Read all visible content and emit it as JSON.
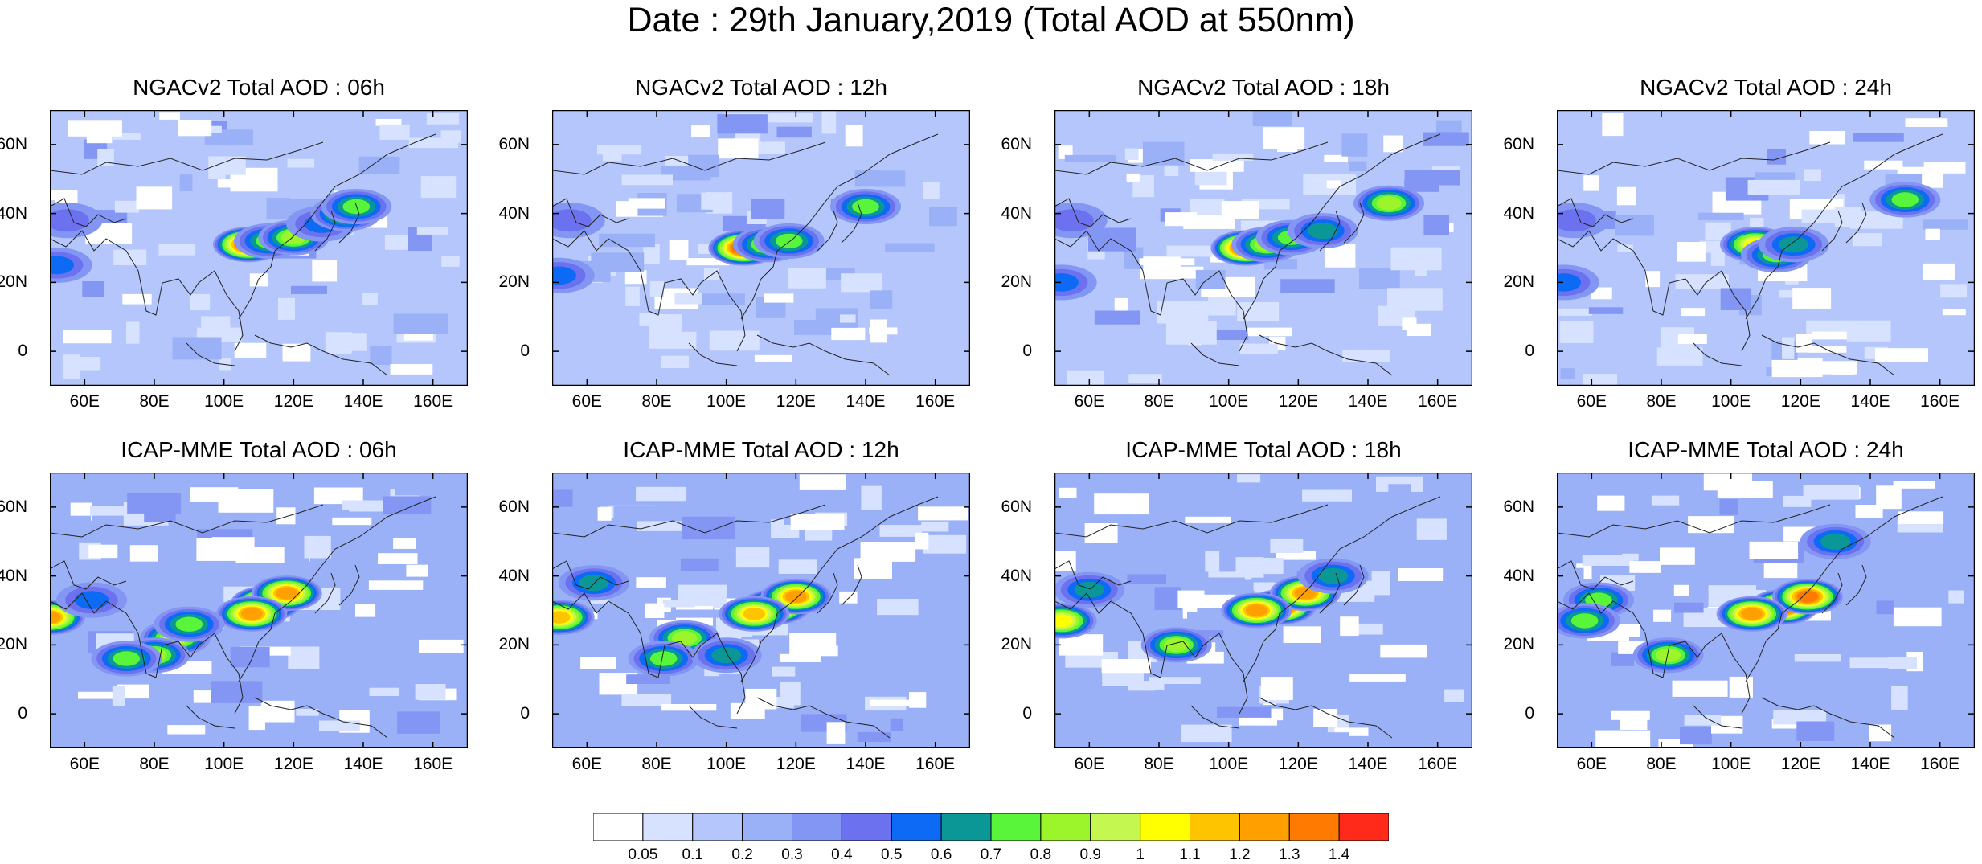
{
  "title": "Date : 29th January,2019 (Total AOD at 550nm)",
  "axis": {
    "lon_range": [
      50,
      170
    ],
    "lat_range": [
      -10,
      70
    ],
    "lon_ticks": [
      "60E",
      "80E",
      "100E",
      "120E",
      "140E",
      "160E"
    ],
    "lon_tick_values": [
      60,
      80,
      100,
      120,
      140,
      160
    ],
    "lat_ticks": [
      "60N",
      "40N",
      "20N",
      "0"
    ],
    "lat_tick_values": [
      60,
      40,
      20,
      0
    ]
  },
  "colorbar": {
    "levels": [
      "0.05",
      "0.1",
      "0.2",
      "0.3",
      "0.4",
      "0.5",
      "0.6",
      "0.7",
      "0.8",
      "0.9",
      "1",
      "1.1",
      "1.2",
      "1.3",
      "1.4"
    ],
    "colors": [
      "#ffffff",
      "#d6e2ff",
      "#b4c6fb",
      "#9ab0f7",
      "#8396f4",
      "#6c72ef",
      "#0d6af5",
      "#0b9796",
      "#58f53a",
      "#9cf52a",
      "#c4f74f",
      "#ffff00",
      "#ffc400",
      "#ffa000",
      "#ff7a00",
      "#ff2a1a"
    ]
  },
  "panels": [
    {
      "title": "NGACv2 Total AOD : 06h",
      "model": "NGACv2",
      "hour": "06h",
      "plumes": [
        {
          "lon": 107,
          "lat": 31,
          "level": 15
        },
        {
          "lon": 113,
          "lat": 32,
          "level": 8
        },
        {
          "lon": 120,
          "lat": 33,
          "level": 9
        },
        {
          "lon": 128,
          "lat": 37,
          "level": 6
        },
        {
          "lon": 135,
          "lat": 40,
          "level": 9
        },
        {
          "lon": 138,
          "lat": 42,
          "level": 8
        },
        {
          "lon": 55,
          "lat": 38,
          "level": 5
        },
        {
          "lon": 52,
          "lat": 25,
          "level": 6
        }
      ]
    },
    {
      "title": "NGACv2 Total AOD : 12h",
      "model": "NGACv2",
      "hour": "12h",
      "plumes": [
        {
          "lon": 105,
          "lat": 30,
          "level": 15
        },
        {
          "lon": 112,
          "lat": 31,
          "level": 9
        },
        {
          "lon": 118,
          "lat": 32,
          "level": 8
        },
        {
          "lon": 140,
          "lat": 42,
          "level": 8
        },
        {
          "lon": 55,
          "lat": 38,
          "level": 5
        },
        {
          "lon": 52,
          "lat": 22,
          "level": 6
        }
      ]
    },
    {
      "title": "NGACv2 Total AOD : 18h",
      "model": "NGACv2",
      "hour": "18h",
      "plumes": [
        {
          "lon": 105,
          "lat": 30,
          "level": 15
        },
        {
          "lon": 111,
          "lat": 31,
          "level": 9
        },
        {
          "lon": 118,
          "lat": 33,
          "level": 8
        },
        {
          "lon": 127,
          "lat": 35,
          "level": 7
        },
        {
          "lon": 146,
          "lat": 43,
          "level": 9
        },
        {
          "lon": 55,
          "lat": 38,
          "level": 5
        },
        {
          "lon": 52,
          "lat": 20,
          "level": 6
        }
      ]
    },
    {
      "title": "NGACv2 Total AOD : 24h",
      "model": "NGACv2",
      "hour": "24h",
      "plumes": [
        {
          "lon": 107,
          "lat": 31,
          "level": 11
        },
        {
          "lon": 113,
          "lat": 28,
          "level": 8
        },
        {
          "lon": 118,
          "lat": 31,
          "level": 7
        },
        {
          "lon": 150,
          "lat": 44,
          "level": 8
        },
        {
          "lon": 55,
          "lat": 38,
          "level": 5
        },
        {
          "lon": 52,
          "lat": 20,
          "level": 6
        }
      ]
    },
    {
      "title": "ICAP-MME Total AOD : 06h",
      "model": "ICAP-MME",
      "hour": "06h",
      "plumes": [
        {
          "lon": 112,
          "lat": 32,
          "level": 15
        },
        {
          "lon": 118,
          "lat": 35,
          "level": 13
        },
        {
          "lon": 108,
          "lat": 29,
          "level": 13
        },
        {
          "lon": 86,
          "lat": 22,
          "level": 10
        },
        {
          "lon": 80,
          "lat": 17,
          "level": 9
        },
        {
          "lon": 90,
          "lat": 26,
          "level": 8
        },
        {
          "lon": 50,
          "lat": 28,
          "level": 13
        },
        {
          "lon": 62,
          "lat": 33,
          "level": 6
        },
        {
          "lon": 72,
          "lat": 16,
          "level": 8
        }
      ]
    },
    {
      "title": "ICAP-MME Total AOD : 12h",
      "model": "ICAP-MME",
      "hour": "12h",
      "plumes": [
        {
          "lon": 114,
          "lat": 31,
          "level": 15
        },
        {
          "lon": 120,
          "lat": 34,
          "level": 13
        },
        {
          "lon": 108,
          "lat": 29,
          "level": 12
        },
        {
          "lon": 88,
          "lat": 22,
          "level": 9
        },
        {
          "lon": 82,
          "lat": 16,
          "level": 8
        },
        {
          "lon": 52,
          "lat": 28,
          "level": 12
        },
        {
          "lon": 62,
          "lat": 38,
          "level": 7
        },
        {
          "lon": 100,
          "lat": 17,
          "level": 7
        }
      ]
    },
    {
      "title": "ICAP-MME Total AOD : 18h",
      "model": "ICAP-MME",
      "hour": "18h",
      "plumes": [
        {
          "lon": 115,
          "lat": 31,
          "level": 15
        },
        {
          "lon": 122,
          "lat": 35,
          "level": 13
        },
        {
          "lon": 108,
          "lat": 30,
          "level": 13
        },
        {
          "lon": 85,
          "lat": 20,
          "level": 9
        },
        {
          "lon": 52,
          "lat": 27,
          "level": 11
        },
        {
          "lon": 60,
          "lat": 36,
          "level": 7
        },
        {
          "lon": 130,
          "lat": 40,
          "level": 7
        }
      ]
    },
    {
      "title": "ICAP-MME Total AOD : 24h",
      "model": "ICAP-MME",
      "hour": "24h",
      "plumes": [
        {
          "lon": 115,
          "lat": 31,
          "level": 15
        },
        {
          "lon": 122,
          "lat": 34,
          "level": 14
        },
        {
          "lon": 106,
          "lat": 29,
          "level": 13
        },
        {
          "lon": 82,
          "lat": 17,
          "level": 9
        },
        {
          "lon": 62,
          "lat": 33,
          "level": 8
        },
        {
          "lon": 58,
          "lat": 27,
          "level": 8
        },
        {
          "lon": 130,
          "lat": 50,
          "level": 7
        }
      ]
    }
  ]
}
